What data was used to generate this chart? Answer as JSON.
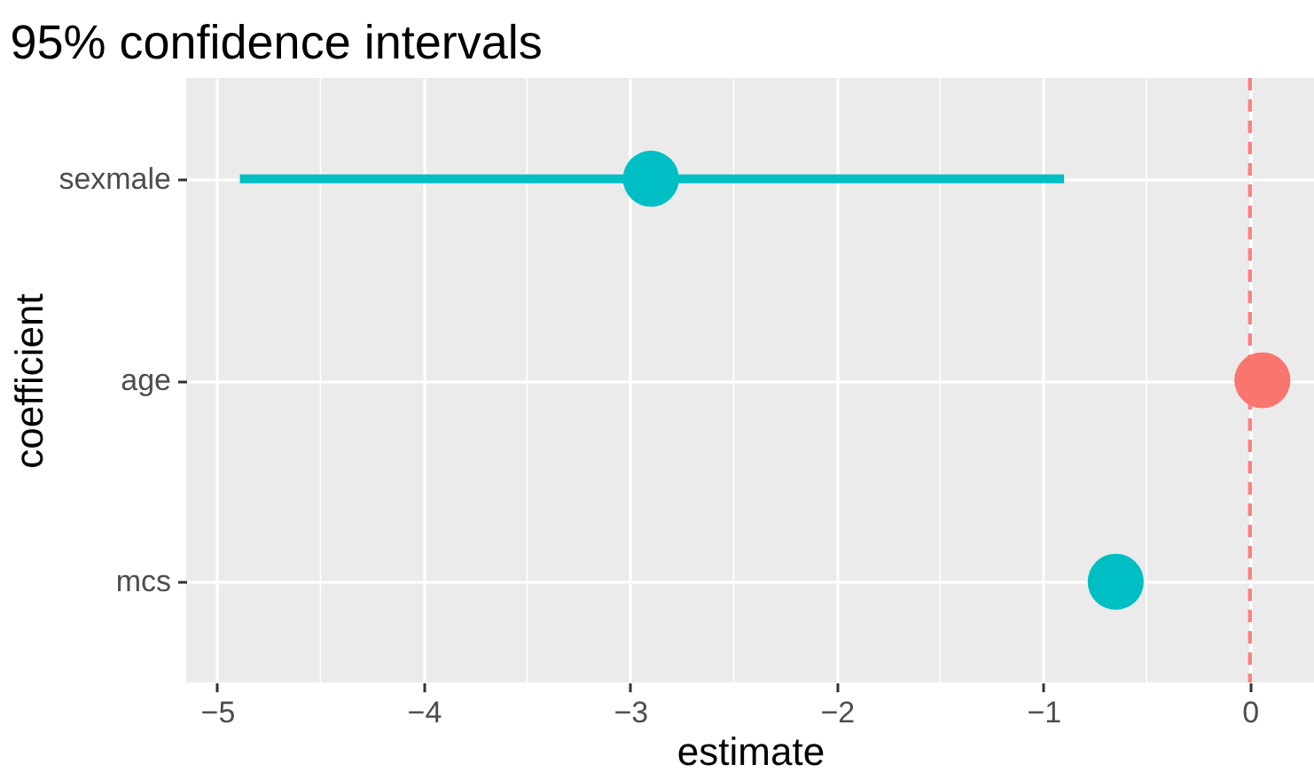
{
  "chart_data": {
    "type": "scatter",
    "title": "95% confidence intervals",
    "xlabel": "estimate",
    "ylabel": "coefficient",
    "categories": [
      "sexmale",
      "age",
      "mcs"
    ],
    "values": [
      -2.9,
      0.06,
      -0.65
    ],
    "colors": [
      "#00bfc4",
      "#f8766d",
      "#00bfc4"
    ],
    "errors": [
      [
        -4.89,
        -0.9
      ],
      null,
      null
    ],
    "xlim": [
      -5.15,
      0.31
    ],
    "xticks": [
      -5,
      -4,
      -3,
      -2,
      -1,
      0
    ],
    "ref_lines": [
      {
        "axis": "x",
        "value": 0,
        "color": "#ff7f7f",
        "line_style": "dashed"
      }
    ],
    "orientation": "horizontal",
    "grid": true,
    "marker": "circle"
  }
}
